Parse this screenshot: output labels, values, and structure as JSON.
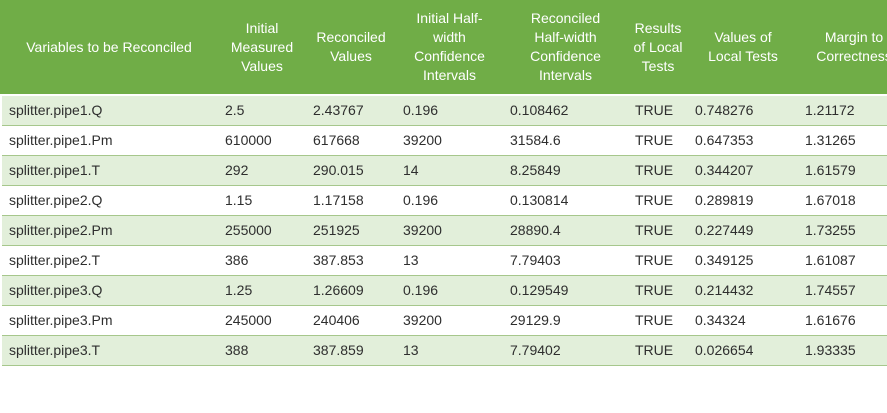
{
  "colors": {
    "header_bg": "#70ad47",
    "header_text": "#ffffff",
    "banded_row_bg": "#e2efda",
    "plain_row_bg": "#ffffff",
    "row_border": "#a6c78c",
    "body_text": "#2e2e2e"
  },
  "table": {
    "columns": [
      {
        "id": "variable",
        "label": "Variables to be Reconciled",
        "lines": [
          "Variables to be Reconciled"
        ]
      },
      {
        "id": "initial_measured",
        "label": "Initial Measured Values",
        "lines": [
          "Initial",
          "Measured",
          "Values"
        ]
      },
      {
        "id": "reconciled",
        "label": "Reconciled Values",
        "lines": [
          "Reconciled",
          "Values"
        ]
      },
      {
        "id": "initial_half_width",
        "label": "Initial Half-width Confidence Intervals",
        "lines": [
          "Initial Half-",
          "width",
          "Confidence",
          "Intervals"
        ]
      },
      {
        "id": "reconciled_half_width",
        "label": "Reconciled Half-width Confidence Intervals",
        "lines": [
          "Reconciled",
          "Half-width",
          "Confidence",
          "Intervals"
        ]
      },
      {
        "id": "results_local_tests",
        "label": "Results of Local Tests",
        "lines": [
          "Results",
          "of Local",
          "Tests"
        ]
      },
      {
        "id": "values_local_tests",
        "label": "Values of Local Tests",
        "lines": [
          "Values of",
          "Local Tests"
        ]
      },
      {
        "id": "margin_correctness",
        "label": "Margin to Correctness",
        "lines": [
          "Margin to",
          "Correctness"
        ]
      }
    ],
    "rows": [
      {
        "variable": "splitter.pipe1.Q",
        "initial_measured": "2.5",
        "reconciled": "2.43767",
        "initial_half_width": "0.196",
        "reconciled_half_width": "0.108462",
        "results_local_tests": "TRUE",
        "values_local_tests": "0.748276",
        "margin_correctness": "1.21172"
      },
      {
        "variable": "splitter.pipe1.Pm",
        "initial_measured": "610000",
        "reconciled": "617668",
        "initial_half_width": "39200",
        "reconciled_half_width": "31584.6",
        "results_local_tests": "TRUE",
        "values_local_tests": "0.647353",
        "margin_correctness": "1.31265"
      },
      {
        "variable": "splitter.pipe1.T",
        "initial_measured": "292",
        "reconciled": "290.015",
        "initial_half_width": "14",
        "reconciled_half_width": "8.25849",
        "results_local_tests": "TRUE",
        "values_local_tests": "0.344207",
        "margin_correctness": "1.61579"
      },
      {
        "variable": "splitter.pipe2.Q",
        "initial_measured": "1.15",
        "reconciled": "1.17158",
        "initial_half_width": "0.196",
        "reconciled_half_width": "0.130814",
        "results_local_tests": "TRUE",
        "values_local_tests": "0.289819",
        "margin_correctness": "1.67018"
      },
      {
        "variable": "splitter.pipe2.Pm",
        "initial_measured": "255000",
        "reconciled": "251925",
        "initial_half_width": "39200",
        "reconciled_half_width": "28890.4",
        "results_local_tests": "TRUE",
        "values_local_tests": "0.227449",
        "margin_correctness": "1.73255"
      },
      {
        "variable": "splitter.pipe2.T",
        "initial_measured": "386",
        "reconciled": "387.853",
        "initial_half_width": "13",
        "reconciled_half_width": "7.79403",
        "results_local_tests": "TRUE",
        "values_local_tests": "0.349125",
        "margin_correctness": "1.61087"
      },
      {
        "variable": "splitter.pipe3.Q",
        "initial_measured": "1.25",
        "reconciled": "1.26609",
        "initial_half_width": "0.196",
        "reconciled_half_width": "0.129549",
        "results_local_tests": "TRUE",
        "values_local_tests": "0.214432",
        "margin_correctness": "1.74557"
      },
      {
        "variable": "splitter.pipe3.Pm",
        "initial_measured": "245000",
        "reconciled": "240406",
        "initial_half_width": "39200",
        "reconciled_half_width": "29129.9",
        "results_local_tests": "TRUE",
        "values_local_tests": "0.34324",
        "margin_correctness": "1.61676"
      },
      {
        "variable": "splitter.pipe3.T",
        "initial_measured": "388",
        "reconciled": "387.859",
        "initial_half_width": "13",
        "reconciled_half_width": "7.79402",
        "results_local_tests": "TRUE",
        "values_local_tests": "0.026654",
        "margin_correctness": "1.93335"
      }
    ]
  }
}
